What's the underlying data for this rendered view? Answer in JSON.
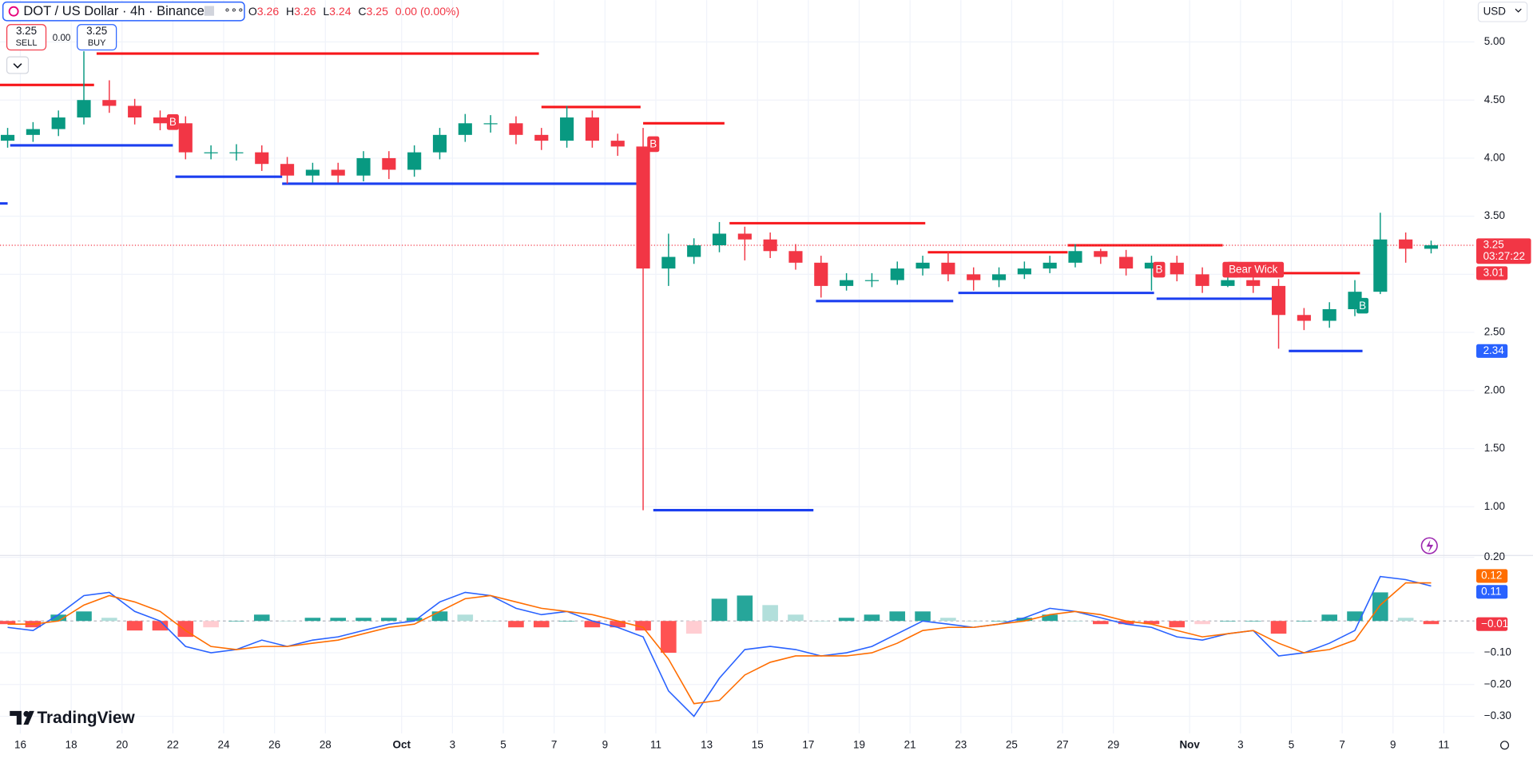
{
  "header": {
    "symbol": "DOT / US Dollar · 4h · Binance",
    "ohlc": [
      {
        "label": "O",
        "value": 3.26
      },
      {
        "label": "H",
        "value": 3.26
      },
      {
        "label": "L",
        "value": 3.24
      },
      {
        "label": "C",
        "value": 3.25
      }
    ],
    "change": "0.00 (0.00%)",
    "sell": {
      "price": 3.25,
      "label": "SELL"
    },
    "spread": "0.00",
    "buy": {
      "price": 3.25,
      "label": "BUY"
    },
    "currency": "USD",
    "logo": "TradingView"
  },
  "chart_data": [
    {
      "type": "candlestick",
      "x": [
        15.5,
        16.5,
        17.5,
        18.5,
        19.5,
        20.5,
        21.5,
        22.5,
        23.5,
        24.5,
        25.5,
        26.5,
        27.5,
        28.5,
        29.5,
        30.5,
        31.5,
        32.5,
        33.5,
        34.5,
        35.5,
        36.5,
        37.5,
        38.5,
        39.5,
        40.5,
        41.5,
        42.5,
        43.5,
        44.5,
        45.5,
        46.5,
        47.5,
        48.5,
        49.5,
        50.5,
        51.5,
        52.5,
        53.5,
        54.5,
        55.5,
        56.5,
        57.5,
        58.5,
        59.5,
        60.5,
        61.5,
        62.5,
        63.5,
        64.5,
        65.5,
        66.5,
        67.5,
        68.5,
        69.5,
        70.5,
        71.5
      ],
      "open": [
        4.15,
        4.2,
        4.25,
        4.35,
        4.5,
        4.45,
        4.35,
        4.3,
        4.05,
        4.05,
        4.05,
        3.95,
        3.85,
        3.9,
        3.85,
        4.0,
        3.9,
        4.05,
        4.2,
        4.3,
        4.3,
        4.2,
        4.15,
        4.35,
        4.15,
        4.1,
        3.05,
        3.15,
        3.25,
        3.35,
        3.3,
        3.2,
        3.1,
        2.9,
        2.95,
        2.95,
        3.05,
        3.1,
        3.0,
        2.95,
        3.0,
        3.05,
        3.1,
        3.2,
        3.15,
        3.05,
        3.1,
        3.0,
        2.9,
        2.95,
        2.9,
        2.65,
        2.6,
        2.7,
        2.85,
        3.3,
        3.22
      ],
      "high": [
        4.26,
        4.31,
        4.41,
        4.92,
        4.67,
        4.51,
        4.41,
        4.36,
        4.11,
        4.12,
        4.11,
        4.01,
        3.96,
        3.96,
        4.06,
        4.06,
        4.11,
        4.26,
        4.38,
        4.37,
        4.36,
        4.26,
        4.45,
        4.41,
        4.21,
        4.26,
        3.35,
        3.31,
        3.45,
        3.41,
        3.36,
        3.26,
        3.16,
        3.01,
        3.01,
        3.11,
        3.16,
        3.2,
        3.06,
        3.06,
        3.11,
        3.16,
        3.26,
        3.22,
        3.21,
        3.16,
        3.16,
        3.06,
        3.01,
        3.08,
        2.96,
        2.71,
        2.76,
        2.95,
        3.53,
        3.36,
        3.29
      ],
      "low": [
        4.09,
        4.14,
        4.19,
        4.29,
        4.39,
        4.29,
        4.24,
        3.99,
        3.99,
        3.98,
        3.89,
        3.78,
        3.79,
        3.79,
        3.8,
        3.82,
        3.84,
        3.99,
        4.14,
        4.22,
        4.12,
        4.07,
        4.09,
        4.09,
        4.02,
        0.97,
        2.9,
        3.09,
        3.19,
        3.12,
        3.14,
        3.04,
        2.8,
        2.86,
        2.89,
        2.91,
        2.99,
        2.94,
        2.86,
        2.89,
        2.96,
        3.01,
        3.06,
        3.09,
        2.99,
        2.86,
        2.94,
        2.84,
        2.89,
        2.84,
        2.36,
        2.52,
        2.54,
        2.64,
        2.83,
        3.1,
        3.18
      ],
      "close": [
        4.2,
        4.25,
        4.35,
        4.5,
        4.45,
        4.35,
        4.3,
        4.05,
        4.05,
        4.05,
        3.95,
        3.85,
        3.9,
        3.85,
        4.0,
        3.9,
        4.05,
        4.2,
        4.3,
        4.3,
        4.2,
        4.15,
        4.35,
        4.15,
        4.1,
        3.05,
        3.15,
        3.25,
        3.35,
        3.3,
        3.2,
        3.1,
        2.9,
        2.95,
        2.95,
        3.05,
        3.1,
        3.0,
        2.95,
        3.0,
        3.05,
        3.1,
        3.2,
        3.15,
        3.05,
        3.1,
        3.0,
        2.9,
        2.95,
        2.9,
        2.65,
        2.6,
        2.7,
        2.85,
        3.3,
        3.22,
        3.25
      ],
      "up_color": "#089981",
      "down_color": "#f23645",
      "xlim": [
        15.2,
        73.2
      ],
      "xticks": [
        {
          "value": 16,
          "label": "16"
        },
        {
          "value": 18,
          "label": "18"
        },
        {
          "value": 20,
          "label": "20"
        },
        {
          "value": 22,
          "label": "22"
        },
        {
          "value": 24,
          "label": "24"
        },
        {
          "value": 26,
          "label": "26"
        },
        {
          "value": 28,
          "label": "28"
        },
        {
          "value": 31,
          "label": "Oct"
        },
        {
          "value": 33,
          "label": "3"
        },
        {
          "value": 35,
          "label": "5"
        },
        {
          "value": 37,
          "label": "7"
        },
        {
          "value": 39,
          "label": "9"
        },
        {
          "value": 41,
          "label": "11"
        },
        {
          "value": 43,
          "label": "13"
        },
        {
          "value": 45,
          "label": "15"
        },
        {
          "value": 47,
          "label": "17"
        },
        {
          "value": 49,
          "label": "19"
        },
        {
          "value": 51,
          "label": "21"
        },
        {
          "value": 53,
          "label": "23"
        },
        {
          "value": 55,
          "label": "25"
        },
        {
          "value": 57,
          "label": "27"
        },
        {
          "value": 59,
          "label": "29"
        },
        {
          "value": 62,
          "label": "Nov"
        },
        {
          "value": 64,
          "label": "3"
        },
        {
          "value": 66,
          "label": "5"
        },
        {
          "value": 68,
          "label": "7"
        },
        {
          "value": 70,
          "label": "9"
        },
        {
          "value": 72,
          "label": "11"
        }
      ],
      "ylim": [
        0.58,
        5.36
      ],
      "yticks": [
        {
          "value": 1,
          "label": "1.00"
        },
        {
          "value": 1.5,
          "label": "1.50"
        },
        {
          "value": 2,
          "label": "2.00"
        },
        {
          "value": 2.5,
          "label": "2.50"
        },
        {
          "value": 3,
          "label": "3.00"
        },
        {
          "value": 3.5,
          "label": "3.50"
        },
        {
          "value": 4,
          "label": "4.00"
        },
        {
          "value": 4.5,
          "label": "4.50"
        },
        {
          "value": 5,
          "label": "5.00"
        }
      ],
      "grid": true,
      "levels": [
        {
          "color": "#f7171b",
          "price": 4.63,
          "x": [
            15.2,
            18.9
          ]
        },
        {
          "color": "#f7171b",
          "price": 4.9,
          "x": [
            19.0,
            36.4
          ]
        },
        {
          "color": "#f7171b",
          "price": 4.44,
          "x": [
            36.5,
            40.4
          ]
        },
        {
          "color": "#f7171b",
          "price": 4.3,
          "x": [
            40.5,
            43.7
          ]
        },
        {
          "color": "#f7171b",
          "price": 3.44,
          "x": [
            43.9,
            51.6
          ]
        },
        {
          "color": "#f7171b",
          "price": 3.19,
          "x": [
            51.7,
            57.2
          ]
        },
        {
          "color": "#f7171b",
          "price": 3.25,
          "x": [
            57.2,
            63.3
          ]
        },
        {
          "color": "#f7171b",
          "price": 3.01,
          "x": [
            64.0,
            68.7
          ]
        },
        {
          "color": "#1b3ff0",
          "price": 4.11,
          "x": [
            15.6,
            22.0
          ]
        },
        {
          "color": "#1b3ff0",
          "price": 3.84,
          "x": [
            22.1,
            26.3
          ]
        },
        {
          "color": "#1b3ff0",
          "price": 3.78,
          "x": [
            26.3,
            40.7
          ]
        },
        {
          "color": "#1b3ff0",
          "price": 3.61,
          "x": [
            15.2,
            15.5
          ]
        },
        {
          "color": "#1b3ff0",
          "price": 0.97,
          "x": [
            40.9,
            47.2
          ]
        },
        {
          "color": "#1b3ff0",
          "price": 2.77,
          "x": [
            47.3,
            52.7
          ]
        },
        {
          "color": "#1b3ff0",
          "price": 2.84,
          "x": [
            52.9,
            60.6
          ]
        },
        {
          "color": "#1b3ff0",
          "price": 2.79,
          "x": [
            60.7,
            65.7
          ]
        },
        {
          "color": "#1b3ff0",
          "price": 2.34,
          "x": [
            65.9,
            68.8
          ]
        }
      ],
      "markers": [
        {
          "text": "B",
          "x": 22.0,
          "price": 4.31,
          "color": "#f23645"
        },
        {
          "text": "B",
          "x": 40.9,
          "price": 4.12,
          "color": "#f23645"
        },
        {
          "text": "B",
          "x": 60.8,
          "price": 3.04,
          "color": "#f23645"
        },
        {
          "text": "B",
          "x": 63.7,
          "price": 3.04,
          "color": "#f23645"
        },
        {
          "text": "Bear Wick",
          "x": 64.5,
          "price": 3.04,
          "color": "#f23645"
        },
        {
          "text": "B",
          "x": 68.8,
          "price": 2.73,
          "color": "#089981"
        }
      ],
      "price_labels": [
        {
          "value": 3.25,
          "color": "#f23645"
        },
        {
          "value": 3.01,
          "color": "#f23645"
        },
        {
          "value": 2.34,
          "color": "#2962ff"
        }
      ],
      "countdown": "03:27:22"
    },
    {
      "type": "macd",
      "x": [
        15.5,
        16.5,
        17.5,
        18.5,
        19.5,
        20.5,
        21.5,
        22.5,
        23.5,
        24.5,
        25.5,
        26.5,
        27.5,
        28.5,
        29.5,
        30.5,
        31.5,
        32.5,
        33.5,
        34.5,
        35.5,
        36.5,
        37.5,
        38.5,
        39.5,
        40.5,
        41.5,
        42.5,
        43.5,
        44.5,
        45.5,
        46.5,
        47.5,
        48.5,
        49.5,
        50.5,
        51.5,
        52.5,
        53.5,
        54.5,
        55.5,
        56.5,
        57.5,
        58.5,
        59.5,
        60.5,
        61.5,
        62.5,
        63.5,
        64.5,
        65.5,
        66.5,
        67.5,
        68.5,
        69.5,
        70.5,
        71.5
      ],
      "macd": {
        "color": "#2962ff",
        "values": [
          -0.02,
          -0.03,
          0.02,
          0.08,
          0.09,
          0.03,
          0.0,
          -0.08,
          -0.1,
          -0.09,
          -0.06,
          -0.08,
          -0.06,
          -0.05,
          -0.03,
          -0.01,
          0.0,
          0.06,
          0.09,
          0.08,
          0.04,
          0.02,
          0.03,
          0.0,
          -0.02,
          -0.05,
          -0.22,
          -0.3,
          -0.18,
          -0.09,
          -0.08,
          -0.09,
          -0.11,
          -0.1,
          -0.08,
          -0.04,
          0.0,
          -0.01,
          -0.02,
          -0.01,
          0.01,
          0.04,
          0.03,
          0.01,
          -0.01,
          -0.02,
          -0.05,
          -0.06,
          -0.04,
          -0.03,
          -0.11,
          -0.1,
          -0.07,
          -0.03,
          0.14,
          0.13,
          0.11
        ]
      },
      "signal": {
        "color": "#ff6d00",
        "values": [
          -0.01,
          -0.01,
          0.0,
          0.05,
          0.08,
          0.06,
          0.03,
          -0.03,
          -0.08,
          -0.09,
          -0.08,
          -0.08,
          -0.07,
          -0.06,
          -0.04,
          -0.02,
          -0.01,
          0.03,
          0.07,
          0.08,
          0.06,
          0.04,
          0.03,
          0.02,
          0.0,
          -0.02,
          -0.12,
          -0.26,
          -0.25,
          -0.17,
          -0.13,
          -0.11,
          -0.11,
          -0.11,
          -0.1,
          -0.07,
          -0.03,
          -0.02,
          -0.02,
          -0.01,
          0.0,
          0.02,
          0.03,
          0.02,
          0.0,
          -0.01,
          -0.03,
          -0.05,
          -0.04,
          -0.03,
          -0.07,
          -0.1,
          -0.09,
          -0.06,
          0.05,
          0.12,
          0.12
        ]
      },
      "histogram": {
        "colors": [
          "#26a69a",
          "#b2dfdb",
          "#ff5252",
          "#ffcdd2"
        ],
        "values": [
          -0.01,
          -0.02,
          0.02,
          0.03,
          0.01,
          -0.03,
          -0.03,
          -0.05,
          -0.02,
          0.0,
          0.02,
          0.0,
          0.01,
          0.01,
          0.01,
          0.01,
          0.01,
          0.03,
          0.02,
          0.0,
          -0.02,
          -0.02,
          0.0,
          -0.02,
          -0.02,
          -0.03,
          -0.1,
          -0.04,
          0.07,
          0.08,
          0.05,
          0.02,
          0.0,
          0.01,
          0.02,
          0.03,
          0.03,
          0.01,
          0.0,
          0.0,
          0.01,
          0.02,
          0.0,
          -0.01,
          -0.01,
          -0.01,
          -0.02,
          -0.01,
          0.0,
          0.0,
          -0.04,
          0.0,
          0.02,
          0.03,
          0.09,
          0.01,
          -0.01
        ]
      },
      "ylim": [
        -0.354,
        0.206
      ],
      "yticks": [
        {
          "value": 0.2,
          "label": "0.20"
        },
        {
          "value": -0.1,
          "label": "−0.10"
        },
        {
          "value": -0.2,
          "label": "−0.20"
        },
        {
          "value": -0.3,
          "label": "−0.30"
        }
      ],
      "badges": [
        {
          "value": 0.12,
          "color": "#ff6d00"
        },
        {
          "value": 0.11,
          "color": "#2962ff"
        },
        {
          "value": -0.01,
          "label": "−0.01",
          "color": "#f23645"
        }
      ]
    }
  ]
}
